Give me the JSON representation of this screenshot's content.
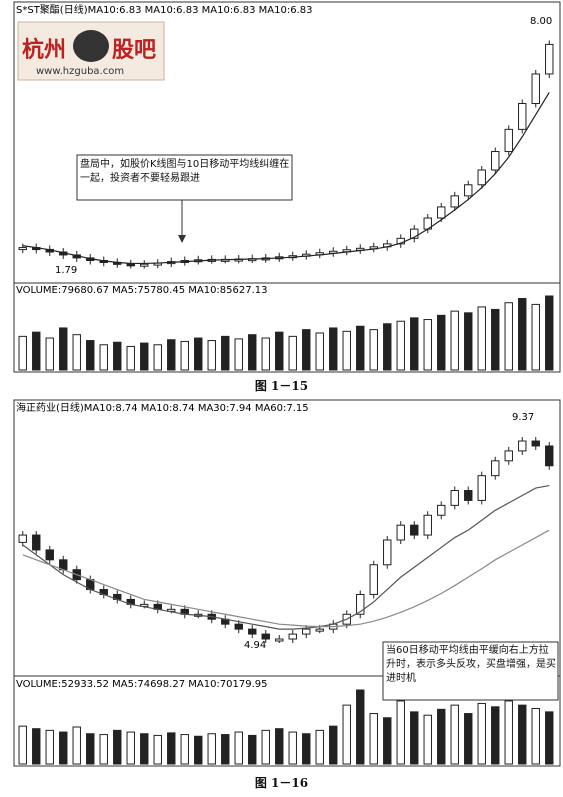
{
  "chart_data": [
    {
      "type": "candlestick",
      "header": "S*ST聚酯(日线)MA10:6.83  MA10:6.83  MA10:6.83  MA10:6.83",
      "price_labels": {
        "high": "8.00",
        "low": "1.79"
      },
      "logo": {
        "text": "杭州",
        "text2": "股吧",
        "url": "www.hzguba.com"
      },
      "annotation": "盘局中，如股价K线图与10日移动平均线纠缠在一起，投资者不要轻易跟进",
      "volume_header": "VOLUME:79680.67  MA5:75780.45  MA10:85627.13",
      "caption": "图 1－15",
      "ma_close": [
        2.3,
        2.25,
        2.18,
        2.1,
        2.02,
        1.95,
        1.9,
        1.86,
        1.84,
        1.85,
        1.88,
        1.92,
        1.95,
        1.97,
        1.98,
        1.98,
        1.99,
        2.0,
        2.02,
        2.05,
        2.08,
        2.12,
        2.16,
        2.2,
        2.24,
        2.28,
        2.32,
        2.4,
        2.55,
        2.8,
        3.1,
        3.4,
        3.7,
        4.0,
        4.4,
        4.9,
        5.5,
        6.2,
        7.0,
        7.8
      ],
      "ma_line": [
        2.35,
        2.3,
        2.24,
        2.16,
        2.08,
        2.0,
        1.94,
        1.9,
        1.87,
        1.87,
        1.88,
        1.9,
        1.92,
        1.94,
        1.96,
        1.97,
        1.98,
        1.99,
        2.0,
        2.02,
        2.04,
        2.07,
        2.1,
        2.14,
        2.18,
        2.22,
        2.26,
        2.32,
        2.42,
        2.58,
        2.8,
        3.05,
        3.32,
        3.6,
        3.92,
        4.3,
        4.75,
        5.3,
        5.9,
        6.5
      ],
      "volume": [
        40,
        45,
        38,
        50,
        42,
        35,
        30,
        33,
        28,
        32,
        30,
        36,
        34,
        38,
        35,
        40,
        37,
        42,
        38,
        45,
        40,
        48,
        44,
        50,
        46,
        52,
        48,
        55,
        58,
        62,
        60,
        65,
        70,
        68,
        75,
        72,
        80,
        85,
        78,
        88
      ]
    },
    {
      "type": "candlestick",
      "header": "海正药业(日线)MA10:8.74  MA10:8.74  MA30:7.94  MA60:7.15",
      "price_labels": {
        "high": "9.37",
        "low": "4.94"
      },
      "annotation": "当60日移动平均线由平缓向右上方拉升时，表示多头反攻，买盘增强，是买进时机",
      "volume_header": "VOLUME:52933.52  MA5:74698.27  MA10:70179.95",
      "caption": "图 1－16",
      "ma_close": [
        7.4,
        7.1,
        6.9,
        6.7,
        6.5,
        6.3,
        6.2,
        6.1,
        6.0,
        6.0,
        5.9,
        5.9,
        5.8,
        5.8,
        5.7,
        5.6,
        5.5,
        5.4,
        5.3,
        5.3,
        5.4,
        5.5,
        5.5,
        5.6,
        5.8,
        6.2,
        6.8,
        7.3,
        7.6,
        7.4,
        7.8,
        8.0,
        8.3,
        8.1,
        8.6,
        8.9,
        9.1,
        9.3,
        9.2,
        8.8
      ],
      "ma30": [
        7.2,
        7.0,
        6.8,
        6.6,
        6.45,
        6.3,
        6.2,
        6.1,
        6.0,
        5.95,
        5.9,
        5.85,
        5.8,
        5.78,
        5.75,
        5.7,
        5.65,
        5.6,
        5.55,
        5.5,
        5.5,
        5.52,
        5.55,
        5.6,
        5.7,
        5.85,
        6.05,
        6.3,
        6.55,
        6.75,
        6.95,
        7.15,
        7.35,
        7.5,
        7.7,
        7.9,
        8.05,
        8.2,
        8.35,
        8.4
      ],
      "ma60": [
        7.0,
        6.9,
        6.8,
        6.7,
        6.6,
        6.5,
        6.4,
        6.3,
        6.2,
        6.1,
        6.05,
        6.0,
        5.95,
        5.9,
        5.85,
        5.8,
        5.75,
        5.7,
        5.65,
        5.6,
        5.58,
        5.56,
        5.55,
        5.55,
        5.57,
        5.6,
        5.66,
        5.74,
        5.84,
        5.95,
        6.08,
        6.22,
        6.38,
        6.55,
        6.72,
        6.9,
        7.05,
        7.2,
        7.35,
        7.5
      ],
      "volume": [
        45,
        42,
        40,
        38,
        44,
        36,
        35,
        40,
        38,
        36,
        34,
        37,
        35,
        33,
        36,
        35,
        38,
        34,
        40,
        42,
        38,
        36,
        40,
        45,
        70,
        88,
        60,
        55,
        75,
        62,
        58,
        65,
        70,
        60,
        72,
        68,
        75,
        70,
        66,
        62
      ]
    }
  ]
}
